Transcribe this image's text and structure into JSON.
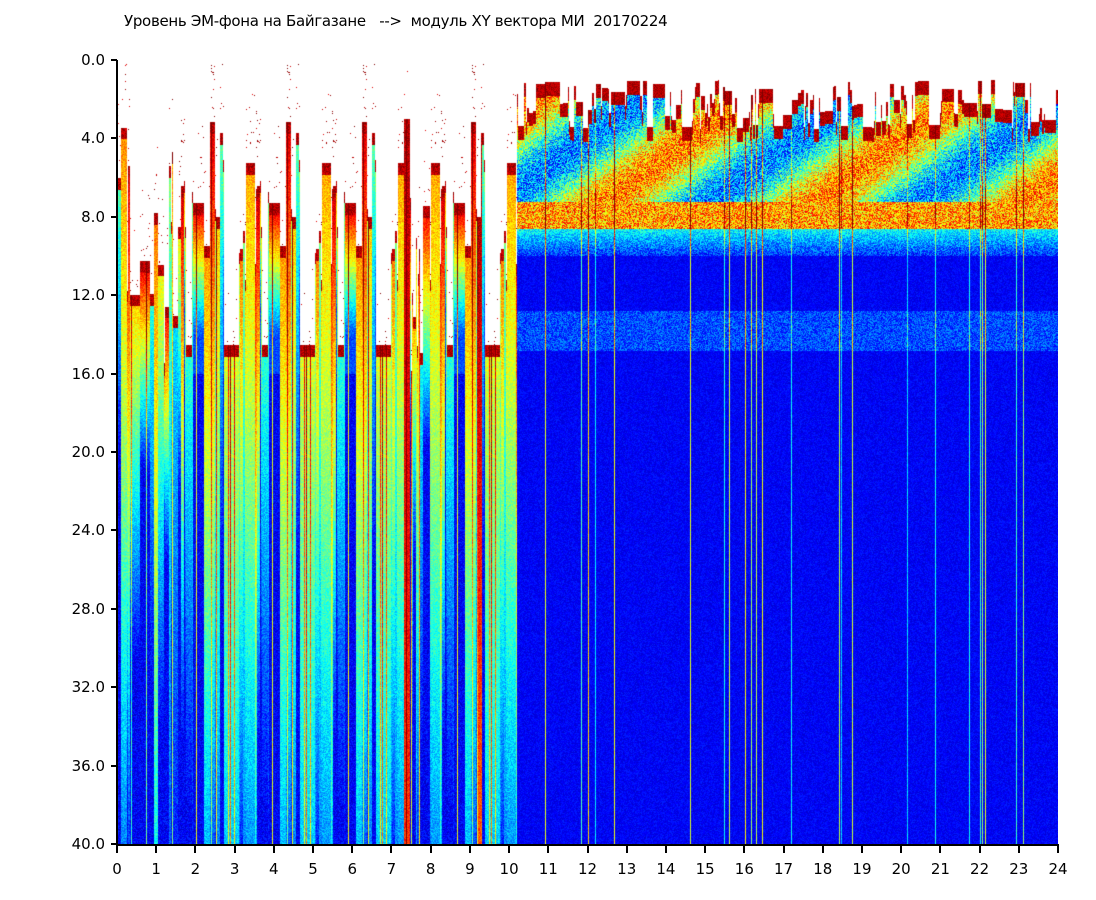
{
  "chart_data": {
    "type": "heatmap",
    "title": "Уровень ЭМ-фона на Байгазане   -->  модуль XY вектора МИ  20170224",
    "xlabel": "",
    "ylabel": "",
    "x_ticks": [
      "0",
      "1",
      "2",
      "3",
      "4",
      "5",
      "6",
      "7",
      "8",
      "9",
      "10",
      "11",
      "12",
      "13",
      "14",
      "15",
      "16",
      "17",
      "18",
      "19",
      "20",
      "21",
      "22",
      "23",
      "24"
    ],
    "y_ticks": [
      "0.0",
      "4.0",
      "8.0",
      "12.0",
      "16.0",
      "20.0",
      "24.0",
      "28.0",
      "32.0",
      "36.0",
      "40.0"
    ],
    "xlim": [
      0,
      24
    ],
    "ylim": [
      0,
      40
    ],
    "y_inverted": true,
    "colormap": "jet",
    "colors": {
      "low": "#0000c8",
      "mid": "#00ff80",
      "high": "#ff0000",
      "no_data": "#ffffff"
    },
    "description_of_data": "Spectrogram intensity vs hour (0-24) and level (0-40); hours 0-10 show sparse vertical streaks starting near 3-16, hours 10-24 show dense band 1-9 with weak band near 13-14.5"
  }
}
